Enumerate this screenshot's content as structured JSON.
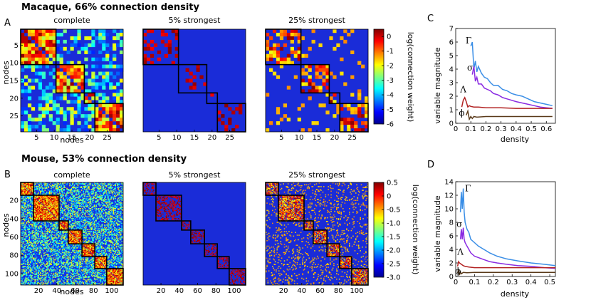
{
  "sections": [
    {
      "id": "macaque",
      "label": "Macaque, 66% connection density"
    },
    {
      "id": "mouse",
      "label": "Mouse, 53% connection density"
    }
  ],
  "panel_letters": [
    "A",
    "B",
    "C",
    "D"
  ],
  "matrix_titles": [
    "complete",
    "5% strongest",
    "25% strongest"
  ],
  "axis_labels": {
    "nodes": "nodes",
    "density": "density",
    "variable_magnitude": "variable magnitude"
  },
  "colors": {
    "matrix_background": "#1a2cd8",
    "module_box": "#000000"
  },
  "chart_data": [
    {
      "id": "A-matrices",
      "type": "heatmap",
      "panel": "A",
      "n_nodes": 29,
      "xticks": [
        5,
        10,
        15,
        20,
        25
      ],
      "yticks": [
        5,
        10,
        15,
        20,
        25
      ],
      "modules": [
        [
          1,
          10
        ],
        [
          11,
          18
        ],
        [
          19,
          21
        ],
        [
          22,
          29
        ]
      ],
      "colorbar": {
        "label": "log(connection weight)",
        "ticks": [
          0,
          -1,
          -2,
          -3,
          -4,
          -5,
          -6
        ],
        "range": [
          -6,
          0.5
        ]
      }
    },
    {
      "id": "B-matrices",
      "type": "heatmap",
      "panel": "B",
      "n_nodes": 112,
      "xticks": [
        20,
        40,
        60,
        80,
        100
      ],
      "yticks": [
        20,
        40,
        60,
        80,
        100
      ],
      "modules": [
        [
          1,
          14
        ],
        [
          15,
          42
        ],
        [
          43,
          52
        ],
        [
          53,
          67
        ],
        [
          68,
          81
        ],
        [
          82,
          94
        ],
        [
          95,
          112
        ]
      ],
      "colorbar": {
        "label": "log(connection weight)",
        "ticks": [
          "0.5",
          "0",
          "-0.5",
          "-1.0",
          "-1.5",
          "-2.0",
          "-2.5",
          "-3.0"
        ],
        "range": [
          -3.0,
          0.5
        ]
      }
    },
    {
      "id": "C-lines",
      "type": "line",
      "panel": "C",
      "xlabel": "density",
      "ylabel": "variable magnitude",
      "xlim": [
        0,
        0.66
      ],
      "ylim": [
        0,
        7
      ],
      "xticks": [
        "0",
        "0.1",
        "0.2",
        "0.3",
        "0.4",
        "0.5",
        "0.6"
      ],
      "yticks": [
        "0",
        "1",
        "2",
        "3",
        "4",
        "5",
        "6",
        "7"
      ],
      "series": [
        {
          "name": "Γ",
          "color": "#3a8ee6",
          "x": [
            0.1,
            0.11,
            0.12,
            0.13,
            0.14,
            0.15,
            0.17,
            0.19,
            0.21,
            0.23,
            0.25,
            0.28,
            0.31,
            0.34,
            0.37,
            0.4,
            0.44,
            0.48,
            0.52,
            0.56,
            0.6,
            0.64
          ],
          "y": [
            5.7,
            6.0,
            4.0,
            4.6,
            3.8,
            4.2,
            3.7,
            3.4,
            3.3,
            3.0,
            2.8,
            2.8,
            2.5,
            2.4,
            2.2,
            2.1,
            2.0,
            1.8,
            1.6,
            1.5,
            1.4,
            1.3
          ]
        },
        {
          "name": "σ",
          "color": "#8a2be2",
          "x": [
            0.11,
            0.12,
            0.13,
            0.14,
            0.15,
            0.17,
            0.19,
            0.21,
            0.23,
            0.25,
            0.28,
            0.31,
            0.34,
            0.37,
            0.4,
            0.44,
            0.48,
            0.52,
            0.56,
            0.6,
            0.64
          ],
          "y": [
            3.6,
            4.2,
            3.1,
            3.4,
            2.9,
            2.9,
            2.6,
            2.5,
            2.4,
            2.2,
            2.1,
            1.9,
            1.8,
            1.7,
            1.6,
            1.5,
            1.4,
            1.3,
            1.2,
            1.15,
            1.1
          ]
        },
        {
          "name": "Λ",
          "color": "#b22222",
          "x": [
            0.04,
            0.05,
            0.06,
            0.07,
            0.08,
            0.09,
            0.1,
            0.12,
            0.15,
            0.2,
            0.3,
            0.4,
            0.5,
            0.64
          ],
          "y": [
            1.2,
            1.7,
            1.9,
            1.6,
            1.2,
            1.3,
            1.25,
            1.2,
            1.2,
            1.15,
            1.15,
            1.1,
            1.1,
            1.1
          ]
        },
        {
          "name": "ϕ",
          "color": "#5a3a1a",
          "x": [
            0.07,
            0.08,
            0.09,
            0.1,
            0.11,
            0.12,
            0.14,
            0.2,
            0.3,
            0.4,
            0.5,
            0.64
          ],
          "y": [
            0.6,
            0.9,
            0.3,
            0.5,
            0.35,
            0.5,
            0.45,
            0.5,
            0.5,
            0.5,
            0.5,
            0.5
          ]
        }
      ]
    },
    {
      "id": "D-lines",
      "type": "line",
      "panel": "D",
      "xlabel": "density",
      "ylabel": "variable magnitude",
      "xlim": [
        0,
        0.53
      ],
      "ylim": [
        0,
        14
      ],
      "xticks": [
        "0",
        "0.1",
        "0.2",
        "0.3",
        "0.4",
        "0.5"
      ],
      "yticks": [
        "0",
        "2",
        "4",
        "6",
        "8",
        "10",
        "12",
        "14"
      ],
      "series": [
        {
          "name": "Γ",
          "color": "#3a8ee6",
          "x": [
            0.025,
            0.03,
            0.035,
            0.04,
            0.045,
            0.05,
            0.06,
            0.07,
            0.08,
            0.1,
            0.12,
            0.15,
            0.18,
            0.22,
            0.27,
            0.33,
            0.4,
            0.47,
            0.53
          ],
          "y": [
            9.5,
            12.5,
            10.0,
            13.0,
            9.5,
            8.0,
            7.0,
            6.5,
            5.5,
            5.0,
            4.5,
            4.0,
            3.5,
            3.0,
            2.6,
            2.3,
            2.0,
            1.8,
            1.6
          ]
        },
        {
          "name": "σ",
          "color": "#8a2be2",
          "x": [
            0.025,
            0.03,
            0.035,
            0.04,
            0.045,
            0.05,
            0.06,
            0.07,
            0.08,
            0.1,
            0.12,
            0.15,
            0.18,
            0.22,
            0.27,
            0.33,
            0.4,
            0.47,
            0.53
          ],
          "y": [
            5.5,
            7.0,
            5.5,
            7.2,
            5.5,
            5.0,
            4.5,
            4.0,
            3.5,
            3.0,
            2.8,
            2.5,
            2.2,
            2.0,
            1.8,
            1.6,
            1.5,
            1.3,
            1.2
          ]
        },
        {
          "name": "Λ",
          "color": "#b22222",
          "x": [
            0.01,
            0.015,
            0.02,
            0.03,
            0.04,
            0.05,
            0.07,
            0.1,
            0.2,
            0.3,
            0.4,
            0.53
          ],
          "y": [
            1.5,
            2.2,
            2.0,
            1.8,
            1.6,
            1.5,
            1.4,
            1.3,
            1.3,
            1.3,
            1.3,
            1.3
          ]
        },
        {
          "name": "ϕ",
          "color": "#5a3a1a",
          "x": [
            0.01,
            0.015,
            0.02,
            0.025,
            0.03,
            0.04,
            0.06,
            0.1,
            0.2,
            0.3,
            0.4,
            0.53
          ],
          "y": [
            0.5,
            0.9,
            0.2,
            0.7,
            0.4,
            0.6,
            0.55,
            0.6,
            0.6,
            0.6,
            0.6,
            0.6
          ]
        }
      ]
    }
  ]
}
